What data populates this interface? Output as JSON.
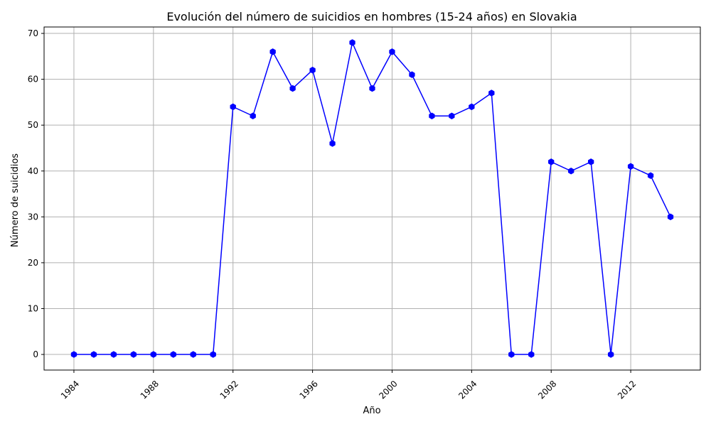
{
  "chart_data": {
    "type": "line",
    "title": "Evolución del número de suicidios en hombres (15-24 años) en Slovakia",
    "xlabel": "Año",
    "ylabel": "Número de suicidios",
    "xlim": [
      1982.5,
      2015.5
    ],
    "ylim": [
      -3.4,
      71.4
    ],
    "x_ticks": [
      1984,
      1988,
      1992,
      1996,
      2000,
      2004,
      2008,
      2012
    ],
    "y_ticks": [
      0,
      10,
      20,
      30,
      40,
      50,
      60,
      70
    ],
    "grid": true,
    "line_color": "#0000ff",
    "grid_color": "#b0b0b0",
    "series": [
      {
        "x": [
          1984,
          1985,
          1986,
          1987,
          1988,
          1989,
          1990,
          1991,
          1992,
          1993,
          1994,
          1995,
          1996,
          1997,
          1998,
          1999,
          2000,
          2001,
          2002,
          2003,
          2004,
          2005,
          2006,
          2007,
          2008,
          2009,
          2010,
          2011,
          2012,
          2013,
          2014
        ],
        "values": [
          0,
          0,
          0,
          0,
          0,
          0,
          0,
          0,
          54,
          52,
          66,
          58,
          62,
          46,
          68,
          58,
          66,
          61,
          52,
          52,
          54,
          57,
          0,
          0,
          42,
          40,
          42,
          0,
          41,
          39,
          30
        ]
      }
    ]
  }
}
